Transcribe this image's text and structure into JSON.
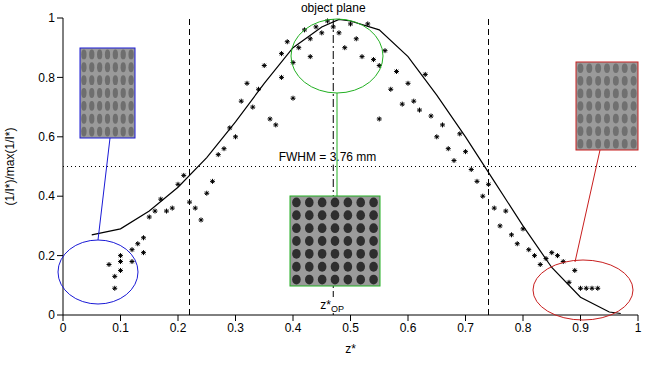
{
  "chart_data": {
    "type": "scatter",
    "xlabel": "z*",
    "ylabel": "(1/I*)/max(1/I*)",
    "xlim": [
      0,
      1
    ],
    "ylim": [
      0,
      1
    ],
    "xticks": [
      0,
      0.1,
      0.2,
      0.3,
      0.4,
      0.5,
      0.6,
      0.7,
      0.8,
      0.9,
      1
    ],
    "yticks": [
      0,
      0.2,
      0.4,
      0.6,
      0.8,
      1
    ],
    "grid": false,
    "series": [
      {
        "type": "scatter",
        "marker": "asterisk",
        "color": "#000000",
        "x": [
          0.09,
          0.09,
          0.08,
          0.1,
          0.1,
          0.13,
          0.14,
          0.12,
          0.15,
          0.16,
          0.18,
          0.17,
          0.2,
          0.21,
          0.22,
          0.23,
          0.24,
          0.25,
          0.26,
          0.27,
          0.28,
          0.29,
          0.3,
          0.31,
          0.32,
          0.33,
          0.34,
          0.35,
          0.36,
          0.37,
          0.38,
          0.38,
          0.39,
          0.4,
          0.41,
          0.42,
          0.43,
          0.43,
          0.44,
          0.45,
          0.46,
          0.47,
          0.48,
          0.49,
          0.5,
          0.51,
          0.52,
          0.53,
          0.54,
          0.55,
          0.56,
          0.57,
          0.58,
          0.59,
          0.6,
          0.61,
          0.62,
          0.63,
          0.64,
          0.65,
          0.66,
          0.67,
          0.68,
          0.69,
          0.7,
          0.71,
          0.72,
          0.73,
          0.74,
          0.75,
          0.76,
          0.77,
          0.78,
          0.79,
          0.8,
          0.81,
          0.82,
          0.83,
          0.84,
          0.85,
          0.86,
          0.87,
          0.88,
          0.89,
          0.9,
          0.91,
          0.92,
          0.93,
          0.12,
          0.1,
          0.14,
          0.19,
          0.55,
          0.4
        ],
        "values": [
          0.09,
          0.13,
          0.17,
          0.18,
          0.2,
          0.24,
          0.26,
          0.22,
          0.33,
          0.35,
          0.35,
          0.39,
          0.44,
          0.47,
          0.38,
          0.36,
          0.32,
          0.41,
          0.45,
          0.54,
          0.56,
          0.63,
          0.6,
          0.72,
          0.78,
          0.7,
          0.76,
          0.84,
          0.66,
          0.64,
          0.88,
          0.8,
          0.92,
          0.85,
          0.9,
          0.96,
          0.93,
          0.87,
          0.97,
          0.95,
          0.99,
          0.97,
          0.95,
          0.9,
          0.98,
          0.93,
          0.87,
          0.98,
          0.86,
          0.84,
          0.89,
          0.76,
          0.82,
          0.71,
          0.78,
          0.72,
          0.69,
          0.81,
          0.67,
          0.6,
          0.64,
          0.56,
          0.52,
          0.61,
          0.55,
          0.49,
          0.45,
          0.4,
          0.44,
          0.36,
          0.3,
          0.35,
          0.27,
          0.24,
          0.29,
          0.22,
          0.2,
          0.17,
          0.19,
          0.21,
          0.2,
          0.18,
          0.11,
          0.15,
          0.09,
          0.09,
          0.09,
          0.09,
          0.18,
          0.15,
          0.21,
          0.36,
          0.66,
          0.73
        ]
      },
      {
        "type": "line",
        "line_style": "solid",
        "color": "#000000",
        "x": [
          0.05,
          0.1,
          0.15,
          0.2,
          0.25,
          0.3,
          0.35,
          0.4,
          0.45,
          0.48,
          0.5,
          0.55,
          0.6,
          0.65,
          0.7,
          0.75,
          0.8,
          0.85,
          0.9,
          0.95,
          0.97
        ],
        "values": [
          0.27,
          0.29,
          0.35,
          0.43,
          0.53,
          0.65,
          0.78,
          0.9,
          0.97,
          0.995,
          0.99,
          0.96,
          0.87,
          0.74,
          0.6,
          0.45,
          0.3,
          0.16,
          0.06,
          0.01,
          0.005
        ]
      }
    ],
    "reference_lines": [
      {
        "x": 0.22,
        "line_style": "dashed"
      },
      {
        "x": 0.74,
        "line_style": "dashed"
      },
      {
        "x": 0.47,
        "line_style": "dashdot",
        "label": "z*",
        "label_subscript": "OP"
      },
      {
        "y": 0.5,
        "line_style": "dotted"
      }
    ],
    "annotations": [
      {
        "text": "object plane",
        "x": 0.47,
        "y": 1.03
      },
      {
        "text": "FWHM = 3.76 mm",
        "x": 0.46,
        "y": 0.53
      }
    ]
  }
}
